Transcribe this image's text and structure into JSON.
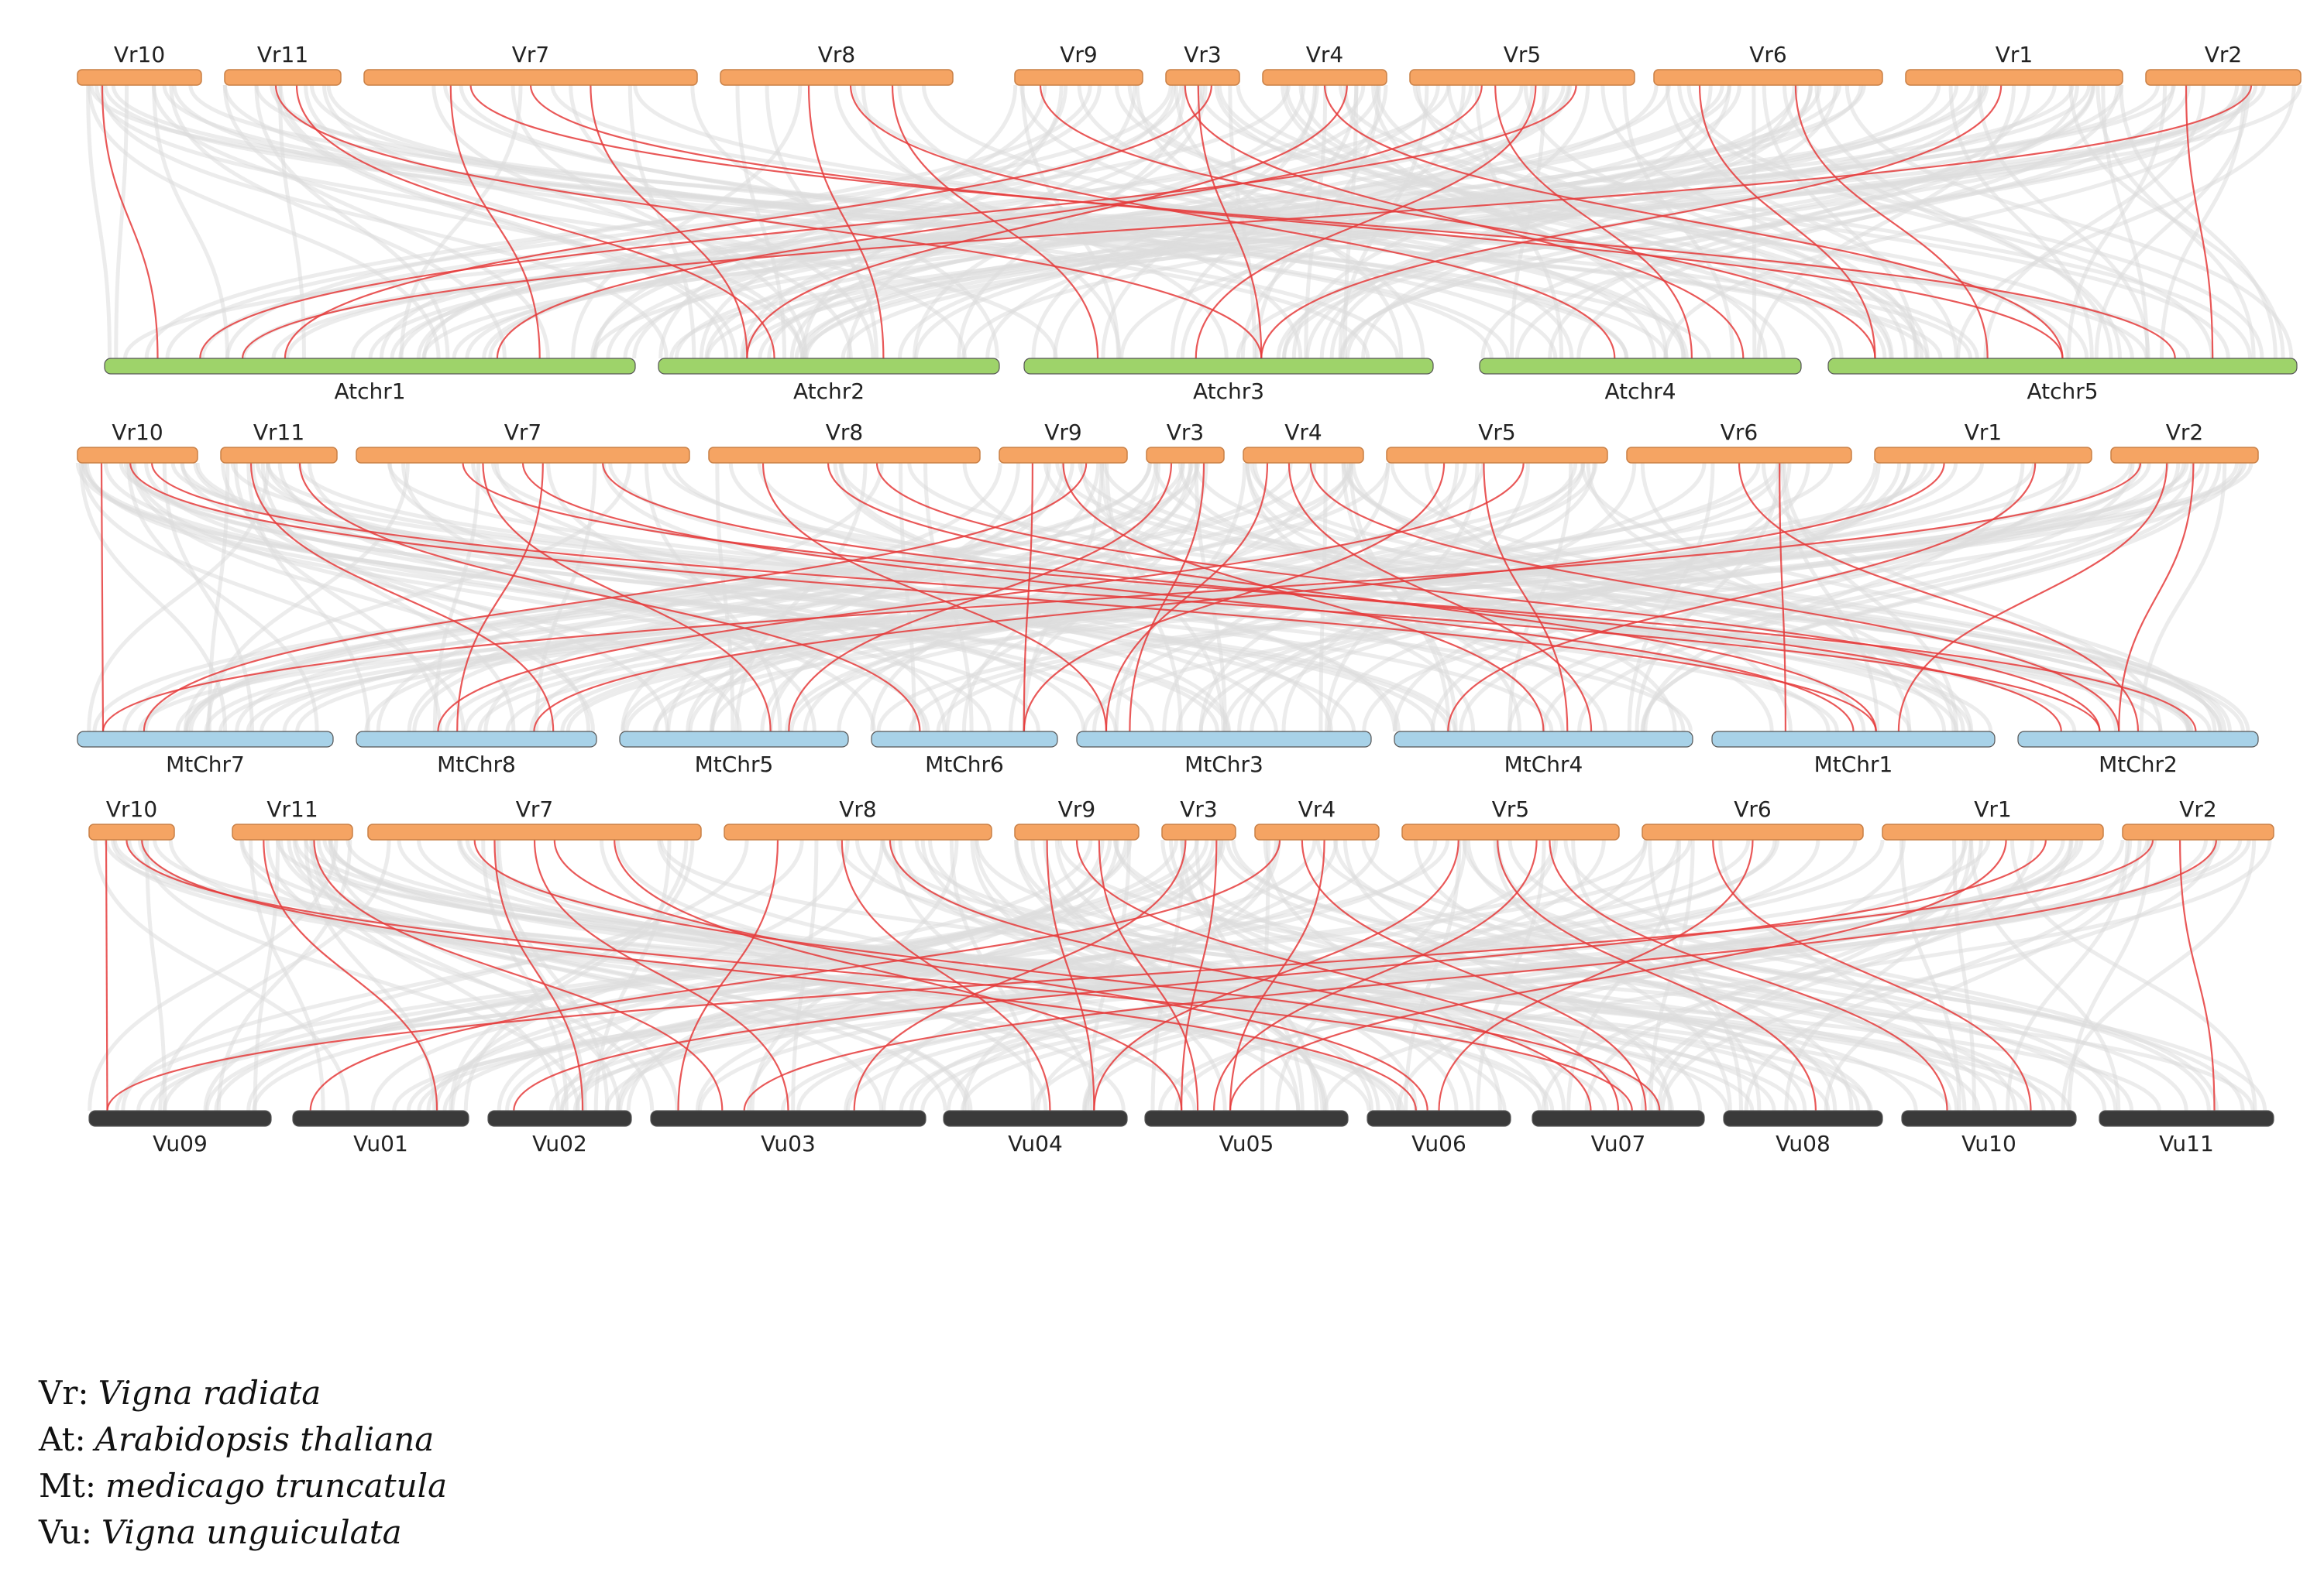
{
  "panels": [
    {
      "name": "vr-vs-at",
      "top_chromosomes": [
        "Vr10",
        "Vr11",
        "Vr7",
        "Vr8",
        "Vr9",
        "Vr3",
        "Vr4",
        "Vr5",
        "Vr6",
        "Vr1",
        "Vr2"
      ],
      "bottom_chromosomes": [
        "Atchr1",
        "Atchr2",
        "Atchr3",
        "Atchr4",
        "Atchr5"
      ],
      "bottom_color": "#9ed36a",
      "links": [
        [
          0,
          0
        ],
        [
          1,
          1
        ],
        [
          1,
          2
        ],
        [
          2,
          0
        ],
        [
          2,
          1
        ],
        [
          2,
          4
        ],
        [
          2,
          4
        ],
        [
          3,
          2
        ],
        [
          3,
          3
        ],
        [
          3,
          1
        ],
        [
          4,
          4
        ],
        [
          5,
          0
        ],
        [
          5,
          2
        ],
        [
          5,
          3
        ],
        [
          6,
          1
        ],
        [
          6,
          4
        ],
        [
          7,
          0
        ],
        [
          7,
          0
        ],
        [
          7,
          2
        ],
        [
          7,
          3
        ],
        [
          8,
          4
        ],
        [
          8,
          4
        ],
        [
          9,
          2
        ],
        [
          10,
          4
        ],
        [
          10,
          0
        ]
      ]
    },
    {
      "name": "vr-vs-mt",
      "top_chromosomes": [
        "Vr10",
        "Vr11",
        "Vr7",
        "Vr8",
        "Vr9",
        "Vr3",
        "Vr4",
        "Vr5",
        "Vr6",
        "Vr1",
        "Vr2"
      ],
      "bottom_chromosomes": [
        "MtChr7",
        "MtChr8",
        "MtChr5",
        "MtChr6",
        "MtChr3",
        "MtChr4",
        "MtChr1",
        "MtChr2"
      ],
      "bottom_color": "#a8d2e8",
      "links": [
        [
          0,
          0
        ],
        [
          0,
          7
        ],
        [
          0,
          6
        ],
        [
          1,
          1
        ],
        [
          1,
          3
        ],
        [
          2,
          6
        ],
        [
          2,
          7
        ],
        [
          2,
          7
        ],
        [
          2,
          1
        ],
        [
          2,
          2
        ],
        [
          3,
          4
        ],
        [
          3,
          7
        ],
        [
          3,
          6
        ],
        [
          4,
          3
        ],
        [
          4,
          0
        ],
        [
          4,
          5
        ],
        [
          5,
          2
        ],
        [
          5,
          4
        ],
        [
          6,
          7
        ],
        [
          6,
          5
        ],
        [
          6,
          4
        ],
        [
          7,
          1
        ],
        [
          7,
          5
        ],
        [
          7,
          3
        ],
        [
          8,
          6
        ],
        [
          8,
          7
        ],
        [
          9,
          1
        ],
        [
          9,
          5
        ],
        [
          10,
          7
        ],
        [
          10,
          6
        ],
        [
          10,
          0
        ]
      ]
    },
    {
      "name": "vr-vs-vu",
      "top_chromosomes": [
        "Vr10",
        "Vr11",
        "Vr7",
        "Vr8",
        "Vr9",
        "Vr3",
        "Vr4",
        "Vr5",
        "Vr6",
        "Vr1",
        "Vr2"
      ],
      "bottom_chromosomes": [
        "Vu09",
        "Vu01",
        "Vu02",
        "Vu03",
        "Vu04",
        "Vu05",
        "Vu06",
        "Vu07",
        "Vu08",
        "Vu10",
        "Vu11"
      ],
      "bottom_color": "#3a3a3a",
      "links": [
        [
          0,
          0
        ],
        [
          0,
          6
        ],
        [
          0,
          7
        ],
        [
          1,
          1
        ],
        [
          1,
          3
        ],
        [
          2,
          3
        ],
        [
          2,
          7
        ],
        [
          2,
          5
        ],
        [
          2,
          6
        ],
        [
          2,
          2
        ],
        [
          3,
          3
        ],
        [
          3,
          7
        ],
        [
          3,
          4
        ],
        [
          4,
          4
        ],
        [
          4,
          5
        ],
        [
          4,
          7
        ],
        [
          5,
          3
        ],
        [
          5,
          5
        ],
        [
          6,
          5
        ],
        [
          6,
          7
        ],
        [
          6,
          1
        ],
        [
          7,
          5
        ],
        [
          7,
          8
        ],
        [
          7,
          4
        ],
        [
          7,
          9
        ],
        [
          8,
          6
        ],
        [
          8,
          9
        ],
        [
          9,
          2
        ],
        [
          9,
          5
        ],
        [
          10,
          10
        ],
        [
          10,
          0
        ],
        [
          10,
          3
        ]
      ]
    }
  ],
  "colors": {
    "vr_chromosome": "#f5a463",
    "link_highlight": "#e53b3b",
    "link_background": "#dcdcdc"
  },
  "legend": [
    {
      "abbr": "Vr:",
      "species": "Vigna radiata"
    },
    {
      "abbr": "At:",
      "species": "Arabidopsis  thaliana"
    },
    {
      "abbr": "Mt:",
      "species": "medicago truncatula"
    },
    {
      "abbr": "Vu:",
      "species": "Vigna unguiculata"
    }
  ]
}
